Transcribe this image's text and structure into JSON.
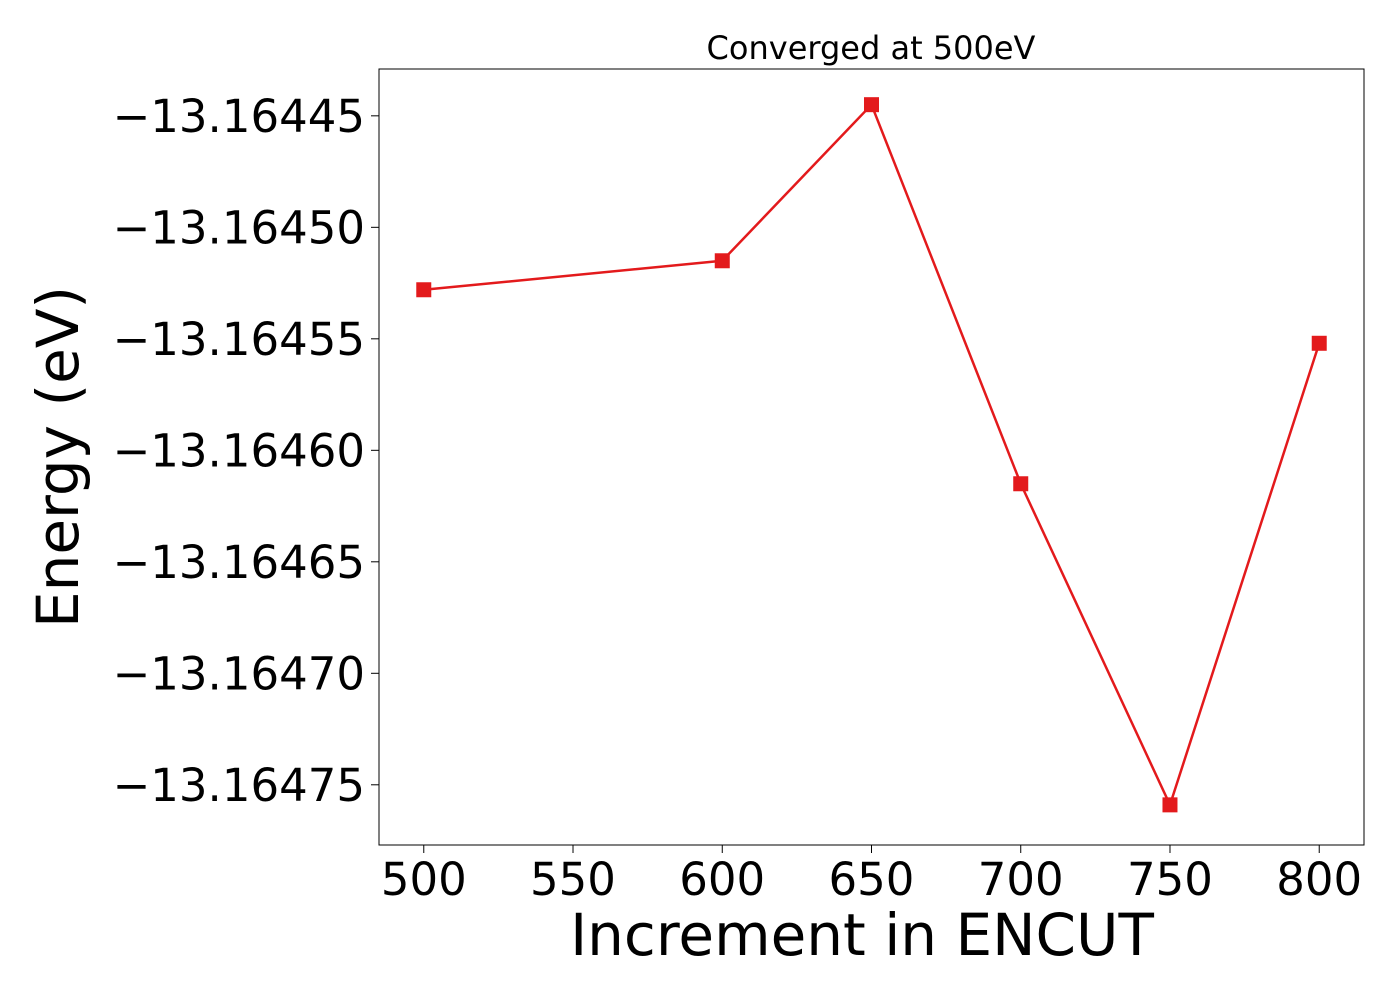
{
  "chart_data": {
    "type": "line",
    "title": "Converged at 500eV",
    "xlabel": "Increment in ENCUT",
    "ylabel": "Energy (eV)",
    "x": [
      500,
      600,
      650,
      700,
      750,
      800
    ],
    "series": [
      {
        "values": [
          -13.164528,
          -13.164515,
          -13.164445,
          -13.164615,
          -13.164759,
          -13.164552
        ],
        "color": "#e31a1c",
        "marker": "square"
      }
    ],
    "xlim": [
      485,
      815
    ],
    "ylim": [
      -13.164777,
      -13.164429
    ],
    "xticks": [
      500,
      550,
      600,
      650,
      700,
      750,
      800
    ],
    "xtick_labels": [
      "500",
      "550",
      "600",
      "650",
      "700",
      "750",
      "800"
    ],
    "yticks": [
      -13.16445,
      -13.1645,
      -13.16455,
      -13.1646,
      -13.16465,
      -13.1647,
      -13.16475
    ],
    "ytick_labels": [
      "−13.16445",
      "−13.16450",
      "−13.16455",
      "−13.16460",
      "−13.16465",
      "−13.16470",
      "−13.16475"
    ],
    "grid": false,
    "legend": "none"
  }
}
